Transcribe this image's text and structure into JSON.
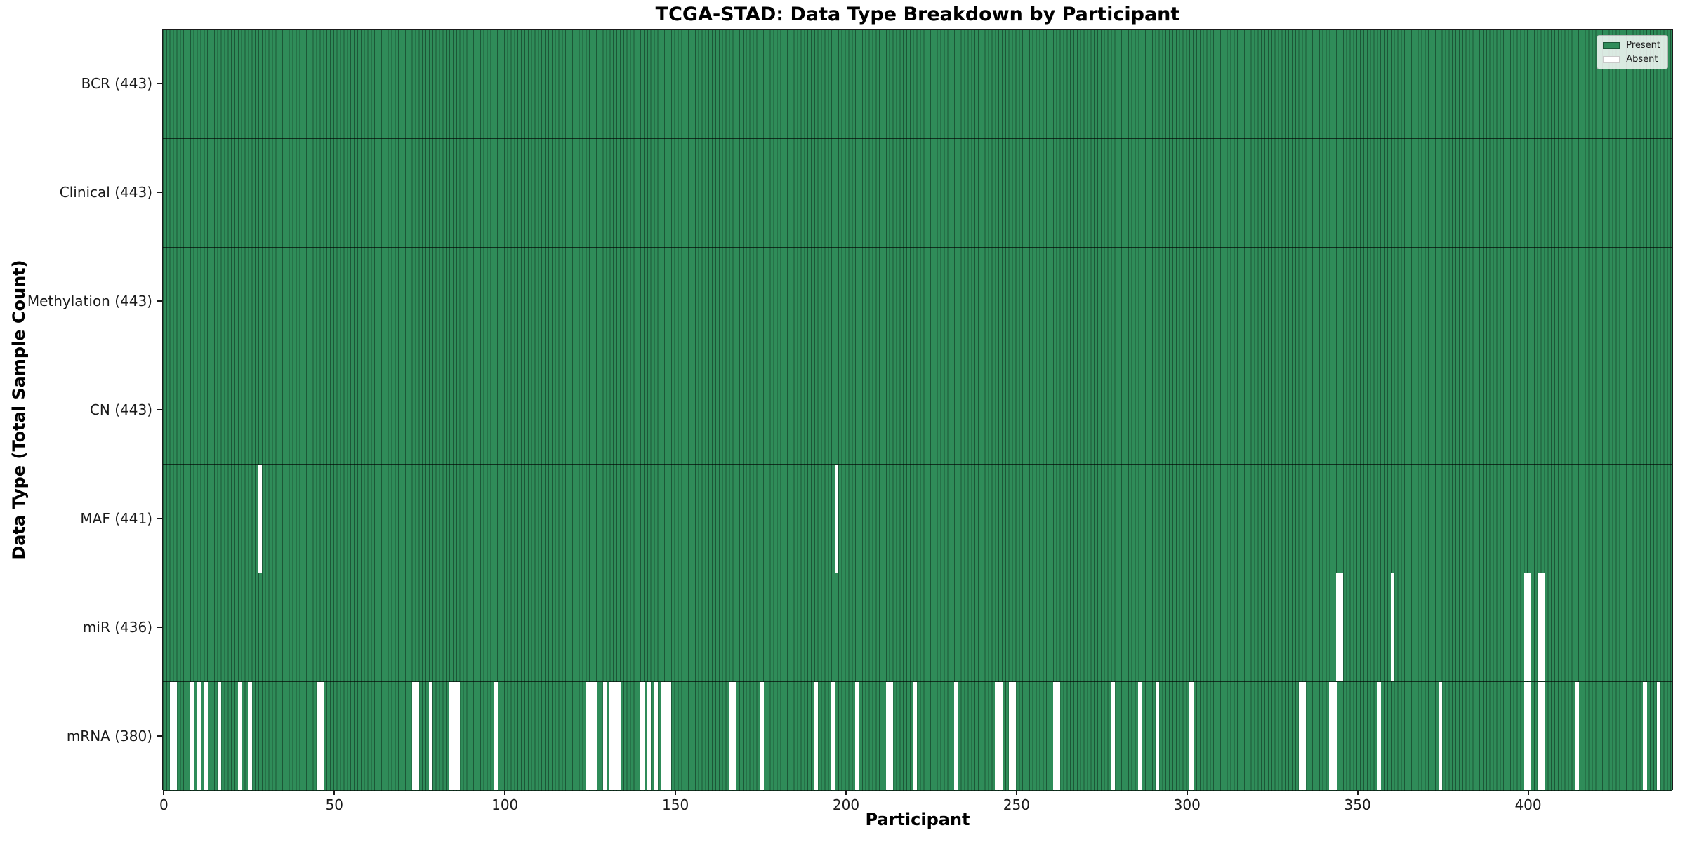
{
  "title": "TCGA-STAD: Data Type Breakdown by Participant",
  "xlabel": "Participant",
  "ylabel": "Data Type (Total Sample Count)",
  "legend": {
    "present_label": "Present",
    "absent_label": "Absent",
    "position": "upper right"
  },
  "colors": {
    "present_fill": "#2f8c59",
    "cell_edge": "#1c5737",
    "absent": "#ffffff",
    "row_divider": "#1a1a1a",
    "text": "#1a1a1a"
  },
  "chart_data": {
    "type": "heatmap",
    "title": "TCGA-STAD: Data Type Breakdown by Participant",
    "xlabel": "Participant",
    "ylabel": "Data Type (Total Sample Count)",
    "legend_entries": [
      "Present",
      "Absent"
    ],
    "n_participants": 443,
    "x_range": [
      0,
      443
    ],
    "x_ticks": [
      0,
      50,
      100,
      150,
      200,
      250,
      300,
      350,
      400
    ],
    "grid": false,
    "rows": [
      {
        "name": "BCR",
        "label": "BCR (443)",
        "total": 443,
        "absent": []
      },
      {
        "name": "Clinical",
        "label": "Clinical (443)",
        "total": 443,
        "absent": []
      },
      {
        "name": "Methylation",
        "label": "Methylation (443)",
        "total": 443,
        "absent": []
      },
      {
        "name": "CN",
        "label": "CN (443)",
        "total": 443,
        "absent": []
      },
      {
        "name": "MAF",
        "label": "MAF (441)",
        "total": 441,
        "absent": [
          28,
          197
        ]
      },
      {
        "name": "miR",
        "label": "miR (436)",
        "total": 436,
        "absent": [
          344,
          345,
          360,
          399,
          400,
          403,
          404
        ]
      },
      {
        "name": "mRNA",
        "label": "mRNA (380)",
        "total": 380,
        "absent": [
          2,
          3,
          8,
          10,
          12,
          16,
          22,
          25,
          45,
          46,
          73,
          74,
          78,
          84,
          85,
          86,
          97,
          124,
          125,
          126,
          129,
          131,
          132,
          133,
          140,
          142,
          144,
          146,
          147,
          148,
          166,
          167,
          175,
          191,
          196,
          203,
          212,
          213,
          220,
          232,
          244,
          245,
          248,
          249,
          261,
          262,
          278,
          286,
          291,
          301,
          333,
          334,
          342,
          343,
          356,
          374,
          399,
          400,
          403,
          404,
          414,
          434,
          438
        ]
      }
    ]
  }
}
